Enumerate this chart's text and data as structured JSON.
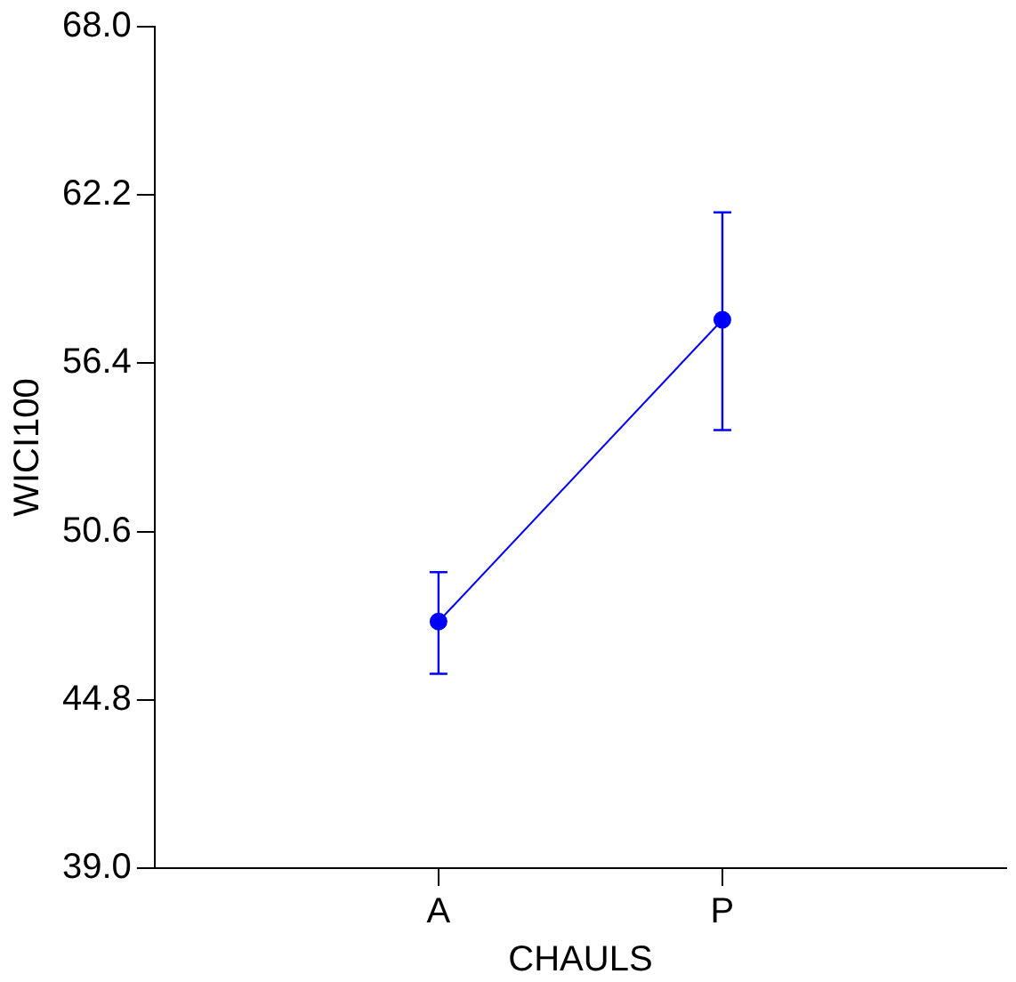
{
  "chart_data": {
    "type": "line",
    "xlabel": "CHAULS",
    "ylabel": "WICI100",
    "categories": [
      "A",
      "P"
    ],
    "series": [
      {
        "color": "#0000ff",
        "values": [
          47.5,
          57.9
        ],
        "errors": [
          [
            45.7,
            49.2
          ],
          [
            54.1,
            61.6
          ]
        ]
      }
    ],
    "ylim": [
      39.0,
      68.0
    ],
    "yticks": [
      {
        "value": 39,
        "label": "39.0"
      },
      {
        "value": 44.8,
        "label": "44.8"
      },
      {
        "value": 50.6,
        "label": "50.6"
      },
      {
        "value": 56.4,
        "label": "56.4"
      },
      {
        "value": 62.2,
        "label": "62.2"
      },
      {
        "value": 68,
        "label": "68.0"
      }
    ],
    "marker": "circle",
    "line_style": "solid",
    "grid": false,
    "legend": false
  }
}
